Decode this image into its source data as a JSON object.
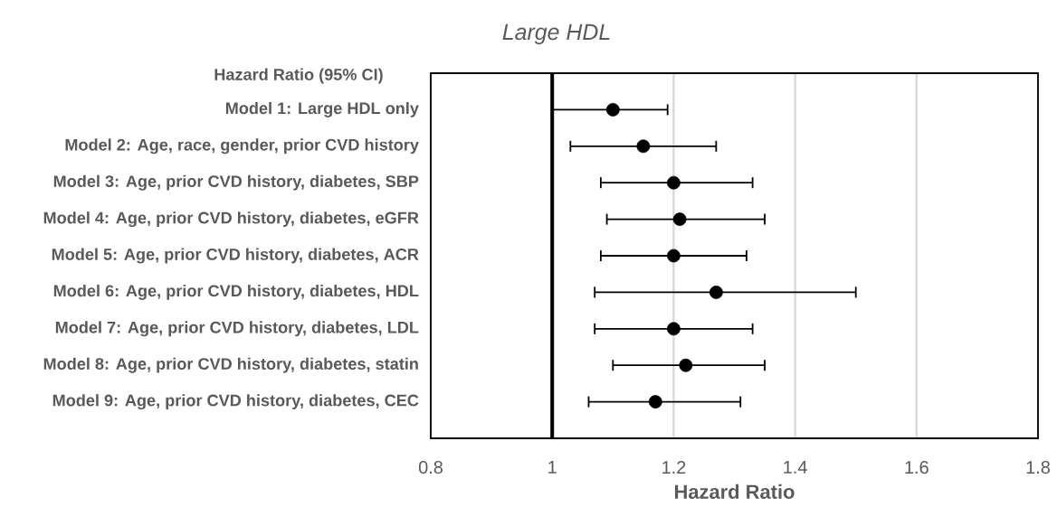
{
  "chart_data": {
    "type": "scatter",
    "orientation": "horizontal",
    "title": "Large HDL",
    "xlabel": "Hazard Ratio",
    "annotations": [
      "Hazard Ratio (95% CI)"
    ],
    "categories": [
      "Model 1: Large HDL only",
      "Model 2: Age, race, gender, prior CVD history",
      "Model 3: Age, prior CVD history, diabetes, SBP",
      "Model 4: Age, prior CVD history, diabetes, eGFR",
      "Model 5: Age, prior CVD history, diabetes, ACR",
      "Model 6: Age, prior CVD history, diabetes, HDL",
      "Model 7: Age, prior CVD history, diabetes, LDL",
      "Model 8: Age, prior CVD history, diabetes, statin",
      "Model 9: Age, prior CVD history, diabetes, CEC"
    ],
    "values": [
      1.1,
      1.15,
      1.2,
      1.21,
      1.2,
      1.27,
      1.2,
      1.22,
      1.17
    ],
    "errors": [
      [
        1.0,
        1.19
      ],
      [
        1.03,
        1.27
      ],
      [
        1.08,
        1.33
      ],
      [
        1.09,
        1.35
      ],
      [
        1.08,
        1.32
      ],
      [
        1.07,
        1.5
      ],
      [
        1.07,
        1.33
      ],
      [
        1.1,
        1.35
      ],
      [
        1.06,
        1.31
      ]
    ],
    "color": "#000000",
    "marker": "circle",
    "xlim": [
      0.8,
      1.8
    ],
    "xticks": [
      0.8,
      1,
      1.2,
      1.4,
      1.6,
      1.8
    ],
    "grid": "x",
    "ref_lines": [
      {
        "axis": "x",
        "value": 1,
        "color": "#000000"
      }
    ]
  }
}
